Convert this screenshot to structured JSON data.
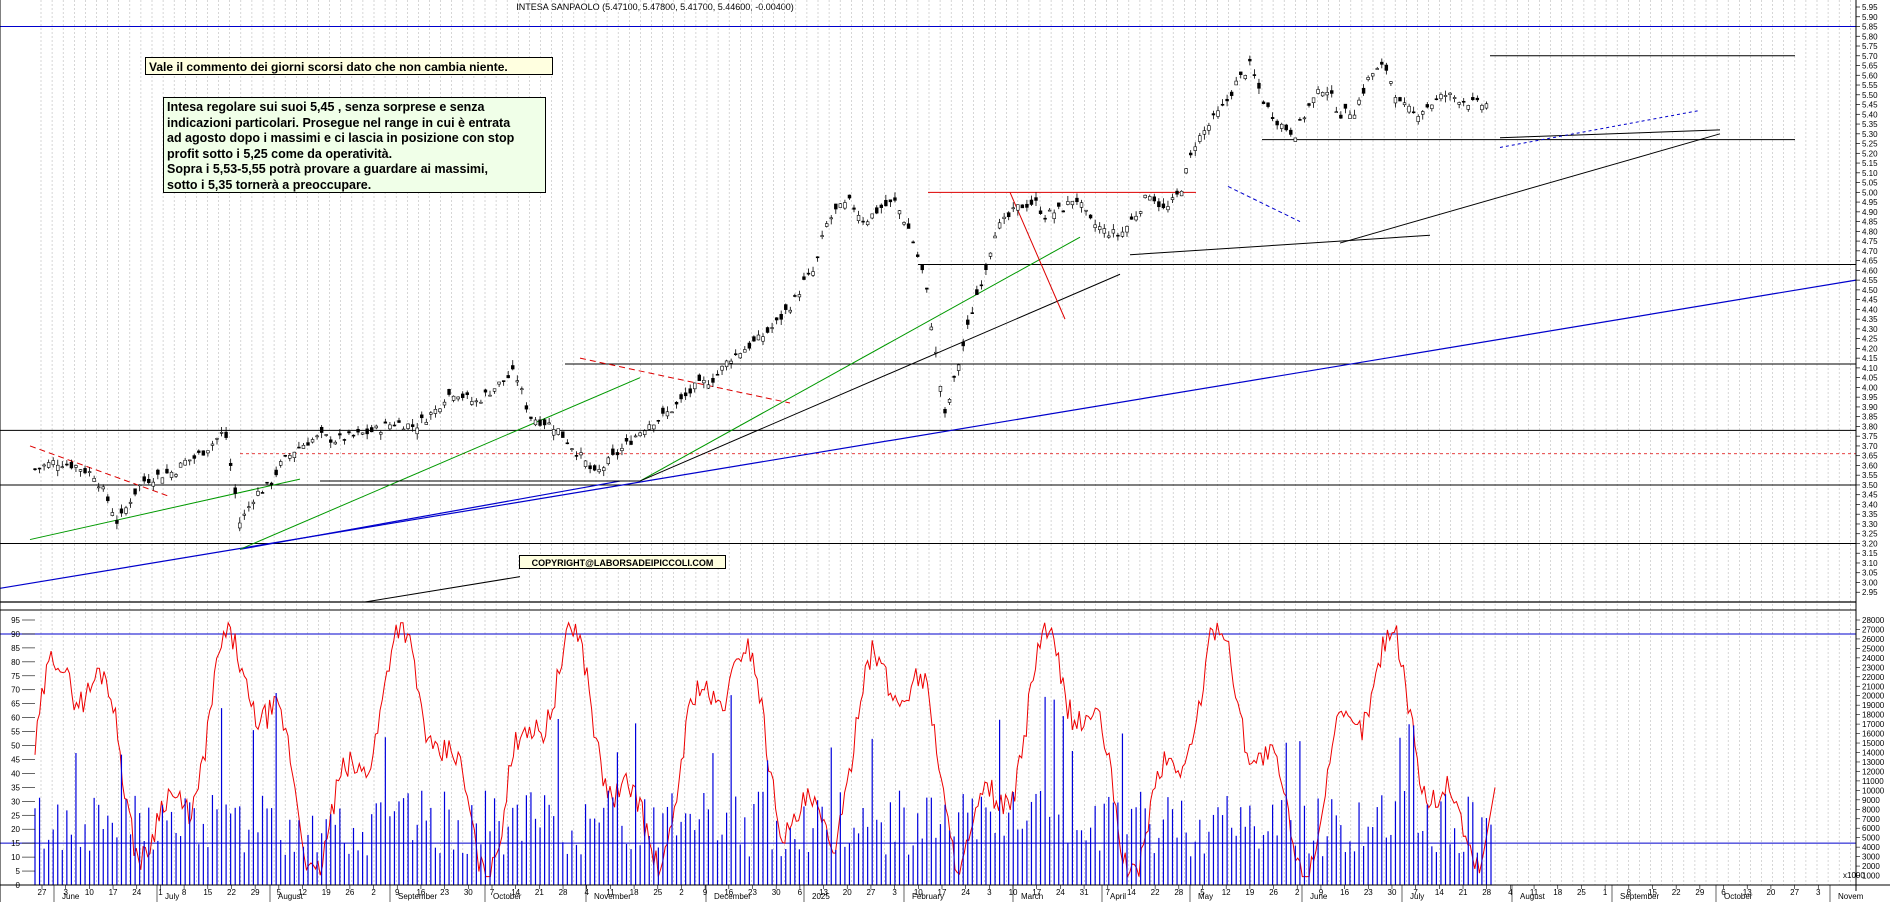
{
  "header": {
    "instrument": "INTESA SANPAOLO",
    "quote": "(5.47100, 5.47800, 5.41700, 5.44600, -0.00400)"
  },
  "notes": {
    "headline": "Vale il commento dei giorni scorsi dato che non cambia niente.",
    "body_lines": [
      "Intesa regolare sui suoi 5,45 , senza sorprese e senza",
      "indicazioni particolari. Prosegue nel range in cui è entrata",
      "ad agosto dopo i massimi e ci lascia in posizione con stop",
      "profit sotto i 5,25 come da operatività.",
      "Sopra i 5,53-5,55 potrà provare a guardare ai massimi,",
      "sotto i 5,35 tornerà a preoccupare."
    ],
    "copyright": "COPYRIGHT@LABORSADEIPICCOLI.COM"
  },
  "colors": {
    "candles": "#000000",
    "trend_blue": "#0000cc",
    "trend_green": "#009900",
    "trend_red": "#dd0000",
    "oscillator": "#ee0000",
    "volume": "#0000dd"
  },
  "chart_data": [
    {
      "type": "candlestick",
      "title": "INTESA SANPAOLO",
      "ylim": [
        2.9,
        5.95
      ],
      "y_ticks": [
        "5.95",
        "5.90",
        "5.85",
        "5.80",
        "5.75",
        "5.70",
        "5.65",
        "5.60",
        "5.55",
        "5.50",
        "5.45",
        "5.40",
        "5.35",
        "5.30",
        "5.25",
        "5.20",
        "5.15",
        "5.10",
        "5.05",
        "5.00",
        "4.95",
        "4.90",
        "4.85",
        "4.80",
        "4.75",
        "4.70",
        "4.65",
        "4.60",
        "4.55",
        "4.50",
        "4.45",
        "4.40",
        "4.35",
        "4.30",
        "4.25",
        "4.20",
        "4.15",
        "4.10",
        "4.05",
        "4.00",
        "3.95",
        "3.90",
        "3.85",
        "3.80",
        "3.75",
        "3.70",
        "3.65",
        "3.60",
        "3.55",
        "3.50",
        "3.45",
        "3.40",
        "3.35",
        "3.30",
        "3.25",
        "3.20",
        "3.15",
        "3.10",
        "3.05",
        "3.00",
        "2.95"
      ],
      "close_path": {
        "x": [
          0,
          20,
          40,
          60,
          75,
          83,
          90,
          98,
          108,
          125,
          140,
          150,
          160,
          175,
          190,
          205,
          220,
          235,
          245,
          260,
          272,
          287,
          300,
          320,
          340,
          360,
          380,
          400,
          410,
          420,
          440,
          460,
          480,
          495,
          520,
          545,
          560,
          580,
          600,
          615,
          628,
          640,
          650,
          660,
          680,
          695,
          710,
          725,
          740,
          760,
          770,
          780,
          790,
          800,
          815,
          830,
          845,
          860,
          875,
          890,
          910,
          920,
          930,
          940,
          950,
          960,
          975,
          985,
          1000,
          1010,
          1020,
          1030,
          1040,
          1055,
          1070,
          1085,
          1100,
          1115,
          1130,
          1145,
          1160,
          1175,
          1190,
          1200,
          1215,
          1230,
          1245,
          1260,
          1275,
          1290,
          1305,
          1320,
          1335,
          1350,
          1365,
          1380,
          1395,
          1410,
          1425,
          1440,
          1452
        ],
        "y": [
          3.58,
          3.62,
          3.6,
          3.55,
          3.4,
          3.3,
          3.37,
          3.45,
          3.52,
          3.55,
          3.57,
          3.62,
          3.64,
          3.7,
          3.78,
          3.3,
          3.45,
          3.5,
          3.6,
          3.68,
          3.72,
          3.75,
          3.73,
          3.75,
          3.78,
          3.82,
          3.8,
          3.88,
          3.95,
          3.98,
          3.92,
          4.0,
          4.08,
          3.85,
          3.8,
          3.65,
          3.55,
          3.65,
          3.75,
          3.82,
          3.85,
          3.9,
          3.95,
          4.0,
          4.05,
          4.15,
          4.2,
          4.25,
          4.32,
          4.45,
          4.55,
          4.6,
          4.82,
          4.9,
          4.95,
          4.85,
          4.92,
          4.95,
          4.8,
          4.55,
          3.85,
          4.05,
          4.25,
          4.45,
          4.6,
          4.8,
          4.88,
          4.93,
          4.95,
          4.88,
          4.9,
          4.92,
          4.98,
          4.85,
          4.8,
          4.78,
          4.88,
          5.0,
          4.9,
          5.0,
          5.25,
          5.35,
          5.45,
          5.55,
          5.65,
          5.45,
          5.35,
          5.3,
          5.45,
          5.55,
          5.4,
          5.42,
          5.6,
          5.65,
          5.45,
          5.4,
          5.45,
          5.5,
          5.48,
          5.45,
          5.45
        ]
      },
      "x_ticks": [
        "27",
        "3",
        "10",
        "17",
        "24",
        "1",
        "8",
        "15",
        "22",
        "29",
        "5",
        "12",
        "19",
        "26",
        "2",
        "9",
        "16",
        "23",
        "30",
        "7",
        "14",
        "21",
        "28",
        "4",
        "11",
        "18",
        "25",
        "2",
        "9",
        "16",
        "23",
        "30",
        "6",
        "13",
        "20",
        "27",
        "3",
        "10",
        "17",
        "24",
        "3",
        "10",
        "17",
        "24",
        "31",
        "7",
        "14",
        "22",
        "28",
        "5",
        "12",
        "19",
        "26",
        "2",
        "9",
        "16",
        "23",
        "30",
        "7",
        "14",
        "21",
        "28",
        "4",
        "11",
        "18",
        "25",
        "1",
        "8",
        "15",
        "22",
        "29",
        "6",
        "13",
        "20",
        "27",
        "3"
      ],
      "months": [
        "June",
        "July",
        "August",
        "September",
        "October",
        "November",
        "December",
        "2025",
        "February",
        "March",
        "April",
        "May",
        "June",
        "July",
        "August",
        "September",
        "October",
        "Novem"
      ]
    },
    {
      "type": "line",
      "name": "",
      "ylim": [
        0,
        95
      ],
      "y_ticks": [
        "95",
        "90",
        "85",
        "80",
        "75",
        "70",
        "65",
        "60",
        "55",
        "50",
        "45",
        "40",
        "35",
        "30",
        "25",
        "20",
        "15",
        "10",
        "5",
        "0"
      ],
      "last_value": 35
    },
    {
      "type": "bar",
      "ylim": [
        0,
        28000
      ],
      "y_ticks": [
        "28000",
        "27000",
        "26000",
        "25000",
        "24000",
        "23000",
        "22000",
        "21000",
        "20000",
        "19000",
        "18000",
        "17000",
        "16000",
        "15000",
        "14000",
        "13000",
        "12000",
        "11000",
        "10000",
        "9000",
        "8000",
        "7000",
        "6000",
        "5000",
        "4000",
        "3000",
        "2000",
        "1000"
      ],
      "axis_note": "x1000"
    }
  ]
}
